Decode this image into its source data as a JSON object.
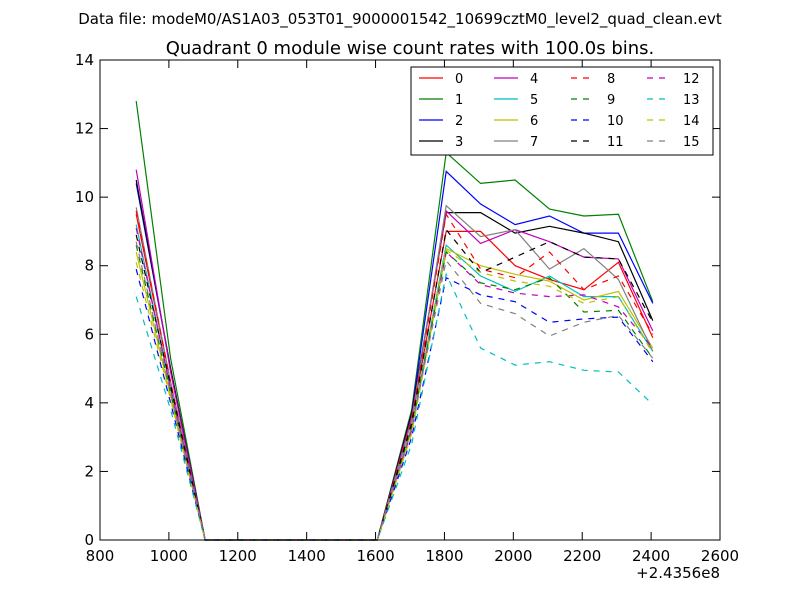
{
  "figure": {
    "suptitle": "Data file: modeM0/AS1A03_053T01_9000001542_10699cztM0_level2_quad_clean.evt"
  },
  "chart_data": {
    "type": "line",
    "title": "Quadrant 0 module wise count rates with 100.0s bins.",
    "xlabel": "",
    "ylabel": "",
    "x_offset_label": "+2.4356e8",
    "xlim": [
      800,
      2600
    ],
    "ylim": [
      0,
      14
    ],
    "xticks": [
      800,
      1000,
      1200,
      1400,
      1600,
      1800,
      2000,
      2200,
      2400,
      2600
    ],
    "yticks": [
      0,
      2,
      4,
      6,
      8,
      10,
      12,
      14
    ],
    "legend_position": "top-right",
    "legend_columns": 4,
    "x": [
      905,
      1005,
      1105,
      1205,
      1305,
      1405,
      1505,
      1605,
      1705,
      1805,
      1905,
      2005,
      2105,
      2205,
      2305,
      2405
    ],
    "series": [
      {
        "name": "0",
        "color": "#ff0000",
        "dash": "solid",
        "values": [
          9.5,
          4.6,
          0,
          0,
          0,
          0,
          0,
          0,
          3.5,
          9.0,
          9.0,
          8.0,
          7.6,
          7.3,
          8.1,
          5.9
        ]
      },
      {
        "name": "1",
        "color": "#008000",
        "dash": "solid",
        "values": [
          12.8,
          5.3,
          0,
          0,
          0,
          0,
          0,
          0,
          3.8,
          11.3,
          10.4,
          10.5,
          9.65,
          9.45,
          9.5,
          6.95
        ]
      },
      {
        "name": "2",
        "color": "#0000ff",
        "dash": "solid",
        "values": [
          10.4,
          5.0,
          0,
          0,
          0,
          0,
          0,
          0,
          3.7,
          10.75,
          9.8,
          9.2,
          9.45,
          8.95,
          8.95,
          6.9
        ]
      },
      {
        "name": "3",
        "color": "#000000",
        "dash": "solid",
        "values": [
          10.5,
          5.0,
          0,
          0,
          0,
          0,
          0,
          0,
          3.7,
          9.55,
          9.55,
          8.95,
          9.15,
          8.95,
          8.7,
          6.4
        ]
      },
      {
        "name": "4",
        "color": "#bf00bf",
        "dash": "solid",
        "values": [
          10.8,
          4.9,
          0,
          0,
          0,
          0,
          0,
          0,
          3.6,
          9.6,
          8.65,
          9.05,
          8.7,
          8.25,
          8.2,
          6.1
        ]
      },
      {
        "name": "5",
        "color": "#00bfbf",
        "dash": "solid",
        "values": [
          9.2,
          4.4,
          0,
          0,
          0,
          0,
          0,
          0,
          3.3,
          8.6,
          7.7,
          7.25,
          7.7,
          7.1,
          7.1,
          5.5
        ]
      },
      {
        "name": "6",
        "color": "#bfbf00",
        "dash": "solid",
        "values": [
          8.4,
          4.2,
          0,
          0,
          0,
          0,
          0,
          0,
          3.2,
          8.5,
          8.0,
          7.75,
          7.55,
          7.0,
          7.25,
          5.6
        ]
      },
      {
        "name": "7",
        "color": "#808080",
        "dash": "solid",
        "values": [
          9.7,
          4.6,
          0,
          0,
          0,
          0,
          0,
          0,
          3.5,
          9.75,
          8.85,
          9.05,
          7.9,
          8.5,
          7.6,
          5.5
        ]
      },
      {
        "name": "8",
        "color": "#ff0000",
        "dash": "dashed",
        "values": [
          9.6,
          4.6,
          0,
          0,
          0,
          0,
          0,
          0,
          3.5,
          9.5,
          7.9,
          7.65,
          8.4,
          7.3,
          7.7,
          6.0
        ]
      },
      {
        "name": "9",
        "color": "#008000",
        "dash": "dashed",
        "values": [
          8.6,
          4.3,
          0,
          0,
          0,
          0,
          0,
          0,
          3.3,
          8.4,
          7.5,
          7.3,
          7.65,
          6.65,
          6.7,
          5.3
        ]
      },
      {
        "name": "10",
        "color": "#0000ff",
        "dash": "dashed",
        "values": [
          7.9,
          4.0,
          0,
          0,
          0,
          0,
          0,
          0,
          3.0,
          7.65,
          7.15,
          6.95,
          6.35,
          6.45,
          6.5,
          5.2
        ]
      },
      {
        "name": "11",
        "color": "#000000",
        "dash": "dashed",
        "values": [
          8.9,
          4.5,
          0,
          0,
          0,
          0,
          0,
          0,
          3.4,
          9.05,
          7.8,
          8.25,
          8.7,
          8.25,
          8.2,
          6.35
        ]
      },
      {
        "name": "12",
        "color": "#bf00bf",
        "dash": "dashed",
        "values": [
          9.1,
          4.4,
          0,
          0,
          0,
          0,
          0,
          0,
          3.2,
          8.4,
          7.45,
          7.2,
          7.1,
          7.15,
          6.8,
          5.6
        ]
      },
      {
        "name": "13",
        "color": "#00bfbf",
        "dash": "dashed",
        "values": [
          7.1,
          3.8,
          0,
          0,
          0,
          0,
          0,
          0,
          2.8,
          7.75,
          5.6,
          5.1,
          5.2,
          4.95,
          4.9,
          3.95
        ]
      },
      {
        "name": "14",
        "color": "#bfbf00",
        "dash": "dashed",
        "values": [
          8.1,
          4.1,
          0,
          0,
          0,
          0,
          0,
          0,
          3.1,
          8.45,
          7.8,
          7.55,
          7.4,
          6.9,
          7.1,
          5.45
        ]
      },
      {
        "name": "15",
        "color": "#808080",
        "dash": "dashed",
        "values": [
          8.7,
          4.3,
          0,
          0,
          0,
          0,
          0,
          0,
          3.3,
          8.15,
          6.9,
          6.6,
          5.95,
          6.35,
          6.55,
          5.3
        ]
      }
    ]
  }
}
